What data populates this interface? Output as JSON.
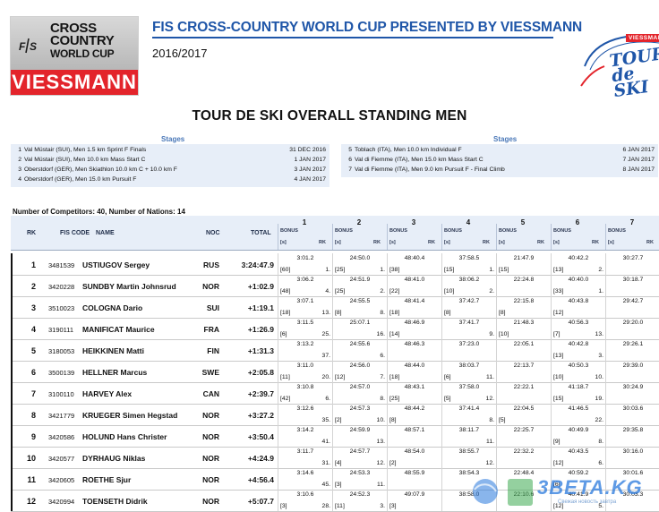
{
  "logo": {
    "line1": "CROSS",
    "line2": "COUNTRY",
    "line3": "WORLD CUP",
    "sponsor": "VIESSMANN",
    "fis": "FIS"
  },
  "header": {
    "title": "FIS CROSS-COUNTRY WORLD CUP PRESENTED BY VIESSMANN",
    "season": "2016/2017",
    "tds_badge": "VIESSMANN",
    "tds_line1": "TOUR",
    "tds_line2": "de SKI"
  },
  "doc_title": "TOUR DE SKI OVERALL STANDING MEN",
  "stages": {
    "heading_left": "Stages",
    "heading_right": "Stages",
    "left": [
      {
        "num": "1",
        "desc": "Val Müstair (SUI), Men 1.5 km Sprint F Finals",
        "date": "31 DEC 2016"
      },
      {
        "num": "2",
        "desc": "Val Müstair (SUI), Men 10.0 km Mass Start C",
        "date": "1 JAN 2017"
      },
      {
        "num": "3",
        "desc": "Oberstdorf (GER), Men Skiathlon 10.0 km C + 10.0 km F",
        "date": "3 JAN 2017"
      },
      {
        "num": "4",
        "desc": "Oberstdorf (GER), Men 15.0 km Pursuit F",
        "date": "4 JAN 2017"
      }
    ],
    "right": [
      {
        "num": "5",
        "desc": "Toblach (ITA), Men 10.0 km Individual F",
        "date": "6 JAN 2017"
      },
      {
        "num": "6",
        "desc": "Val di Fiemme (ITA), Men 15.0 km Mass Start C",
        "date": "7 JAN 2017"
      },
      {
        "num": "7",
        "desc": "Val di Fiemme (ITA), Men 9.0 km Pursuit F - Final Climb",
        "date": "8 JAN 2017"
      }
    ]
  },
  "competitors_line": "Number of Competitors: 40, Number of Nations: 14",
  "table": {
    "headers": {
      "rk": "RK",
      "fis_code": "FIS CODE",
      "name": "NAME",
      "noc": "NOC",
      "total": "TOTAL",
      "bonus": "BONUS",
      "s": "[s]",
      "rk_sub": "RK"
    },
    "stage_numbers": [
      "1",
      "2",
      "3",
      "4",
      "5",
      "6",
      "7"
    ],
    "rows": [
      {
        "rk": "1",
        "fis": "3481539",
        "name": "USTIUGOV Sergey",
        "noc": "RUS",
        "total": "3:24:47.9",
        "stages": [
          {
            "t": "3:01.2",
            "b": "[60]",
            "r": "1."
          },
          {
            "t": "24:50.0",
            "b": "[25]",
            "r": "1."
          },
          {
            "t": "48:40.4",
            "b": "[38]",
            "r": ""
          },
          {
            "t": "37:58.5",
            "b": "[15]",
            "r": "1."
          },
          {
            "t": "21:47.9",
            "b": "[15]",
            "r": ""
          },
          {
            "t": "40:42.2",
            "b": "[13]",
            "r": "2."
          },
          {
            "t": "30:27.7",
            "b": "",
            "r": ""
          }
        ]
      },
      {
        "rk": "2",
        "fis": "3420228",
        "name": "SUNDBY Martin Johnsrud",
        "noc": "NOR",
        "total": "+1:02.9",
        "stages": [
          {
            "t": "3:06.2",
            "b": "[48]",
            "r": "4."
          },
          {
            "t": "24:51.9",
            "b": "[25]",
            "r": "2."
          },
          {
            "t": "48:41.0",
            "b": "[22]",
            "r": ""
          },
          {
            "t": "38:06.2",
            "b": "[10]",
            "r": "2."
          },
          {
            "t": "22:24.8",
            "b": "",
            "r": ""
          },
          {
            "t": "40:40.0",
            "b": "[33]",
            "r": "1."
          },
          {
            "t": "30:18.7",
            "b": "",
            "r": ""
          }
        ]
      },
      {
        "rk": "3",
        "fis": "3510023",
        "name": "COLOGNA Dario",
        "noc": "SUI",
        "total": "+1:19.1",
        "stages": [
          {
            "t": "3:07.1",
            "b": "[18]",
            "r": "13."
          },
          {
            "t": "24:55.5",
            "b": "[8]",
            "r": "8."
          },
          {
            "t": "48:41.4",
            "b": "[18]",
            "r": ""
          },
          {
            "t": "37:42.7",
            "b": "[8]",
            "r": ""
          },
          {
            "t": "22:15.8",
            "b": "[8]",
            "r": ""
          },
          {
            "t": "40:43.8",
            "b": "[12]",
            "r": ""
          },
          {
            "t": "29:42.7",
            "b": "",
            "r": ""
          }
        ]
      },
      {
        "rk": "4",
        "fis": "3190111",
        "name": "MANIFICAT Maurice",
        "noc": "FRA",
        "total": "+1:26.9",
        "stages": [
          {
            "t": "3:11.5",
            "b": "[6]",
            "r": "25."
          },
          {
            "t": "25:07.1",
            "b": "",
            "r": "16."
          },
          {
            "t": "48:46.9",
            "b": "[14]",
            "r": ""
          },
          {
            "t": "37:41.7",
            "b": "",
            "r": "9."
          },
          {
            "t": "21:48.3",
            "b": "[10]",
            "r": ""
          },
          {
            "t": "40:56.3",
            "b": "[7]",
            "r": "13."
          },
          {
            "t": "29:20.0",
            "b": "",
            "r": ""
          }
        ]
      },
      {
        "rk": "5",
        "fis": "3180053",
        "name": "HEIKKINEN Matti",
        "noc": "FIN",
        "total": "+1:31.3",
        "stages": [
          {
            "t": "3:13.2",
            "b": "",
            "r": "37."
          },
          {
            "t": "24:55.6",
            "b": "",
            "r": "6."
          },
          {
            "t": "48:46.3",
            "b": "",
            "r": ""
          },
          {
            "t": "37:23.0",
            "b": "",
            "r": ""
          },
          {
            "t": "22:05.1",
            "b": "",
            "r": ""
          },
          {
            "t": "40:42.8",
            "b": "[13]",
            "r": "3."
          },
          {
            "t": "29:26.1",
            "b": "",
            "r": ""
          }
        ]
      },
      {
        "rk": "6",
        "fis": "3500139",
        "name": "HELLNER Marcus",
        "noc": "SWE",
        "total": "+2:05.8",
        "stages": [
          {
            "t": "3:11.0",
            "b": "[11]",
            "r": "20."
          },
          {
            "t": "24:56.0",
            "b": "[12]",
            "r": "7."
          },
          {
            "t": "48:44.0",
            "b": "[18]",
            "r": ""
          },
          {
            "t": "38:03.7",
            "b": "[6]",
            "r": "11."
          },
          {
            "t": "22:13.7",
            "b": "",
            "r": ""
          },
          {
            "t": "40:50.3",
            "b": "[10]",
            "r": "10."
          },
          {
            "t": "29:39.0",
            "b": "",
            "r": ""
          }
        ]
      },
      {
        "rk": "7",
        "fis": "3100110",
        "name": "HARVEY Alex",
        "noc": "CAN",
        "total": "+2:39.7",
        "stages": [
          {
            "t": "3:10.8",
            "b": "[42]",
            "r": "6."
          },
          {
            "t": "24:57.0",
            "b": "",
            "r": "8."
          },
          {
            "t": "48:43.1",
            "b": "[25]",
            "r": ""
          },
          {
            "t": "37:58.0",
            "b": "[5]",
            "r": "12."
          },
          {
            "t": "22:22.1",
            "b": "",
            "r": ""
          },
          {
            "t": "41:18.7",
            "b": "[15]",
            "r": "19."
          },
          {
            "t": "30:24.9",
            "b": "",
            "r": ""
          }
        ]
      },
      {
        "rk": "8",
        "fis": "3421779",
        "name": "KRUEGER Simen Hegstad",
        "noc": "NOR",
        "total": "+3:27.2",
        "stages": [
          {
            "t": "3:12.6",
            "b": "",
            "r": "35."
          },
          {
            "t": "24:57.3",
            "b": "[2]",
            "r": "10."
          },
          {
            "t": "48:44.2",
            "b": "[8]",
            "r": ""
          },
          {
            "t": "37:41.4",
            "b": "",
            "r": "8."
          },
          {
            "t": "22:04.5",
            "b": "[5]",
            "r": ""
          },
          {
            "t": "41:46.5",
            "b": "",
            "r": "22."
          },
          {
            "t": "30:03.6",
            "b": "",
            "r": ""
          }
        ]
      },
      {
        "rk": "9",
        "fis": "3420586",
        "name": "HOLUND Hans Christer",
        "noc": "NOR",
        "total": "+3:50.4",
        "stages": [
          {
            "t": "3:14.2",
            "b": "",
            "r": "41."
          },
          {
            "t": "24:59.9",
            "b": "",
            "r": "13."
          },
          {
            "t": "48:57.1",
            "b": "",
            "r": ""
          },
          {
            "t": "38:11.7",
            "b": "",
            "r": "11."
          },
          {
            "t": "22:25.7",
            "b": "",
            "r": ""
          },
          {
            "t": "40:49.9",
            "b": "[9]",
            "r": "8."
          },
          {
            "t": "29:35.8",
            "b": "",
            "r": ""
          }
        ]
      },
      {
        "rk": "10",
        "fis": "3420577",
        "name": "DYRHAUG Niklas",
        "noc": "NOR",
        "total": "+4:24.9",
        "stages": [
          {
            "t": "3:11.7",
            "b": "",
            "r": "31."
          },
          {
            "t": "24:57.7",
            "b": "[4]",
            "r": "12."
          },
          {
            "t": "48:54.0",
            "b": "[2]",
            "r": ""
          },
          {
            "t": "38:55.7",
            "b": "",
            "r": "12."
          },
          {
            "t": "22:32.2",
            "b": "",
            "r": ""
          },
          {
            "t": "40:43.5",
            "b": "[12]",
            "r": "6."
          },
          {
            "t": "30:16.0",
            "b": "",
            "r": ""
          }
        ]
      },
      {
        "rk": "11",
        "fis": "3420605",
        "name": "ROETHE Sjur",
        "noc": "NOR",
        "total": "+4:56.4",
        "stages": [
          {
            "t": "3:14.6",
            "b": "",
            "r": "45."
          },
          {
            "t": "24:53.3",
            "b": "[3]",
            "r": "11."
          },
          {
            "t": "48:55.9",
            "b": "",
            "r": ""
          },
          {
            "t": "38:54.3",
            "b": "",
            "r": ""
          },
          {
            "t": "22:48.4",
            "b": "",
            "r": ""
          },
          {
            "t": "40:59.2",
            "b": "[6]",
            "r": ""
          },
          {
            "t": "30:01.6",
            "b": "",
            "r": ""
          }
        ]
      },
      {
        "rk": "12",
        "fis": "3420994",
        "name": "TOENSETH Didrik",
        "noc": "NOR",
        "total": "+5:07.7",
        "stages": [
          {
            "t": "3:10.6",
            "b": "[3]",
            "r": "28."
          },
          {
            "t": "24:52.3",
            "b": "[11]",
            "r": "3."
          },
          {
            "t": "49:07.9",
            "b": "[3]",
            "r": ""
          },
          {
            "t": "38:58.0",
            "b": "",
            "r": ""
          },
          {
            "t": "22:10.6",
            "b": "",
            "r": ""
          },
          {
            "t": "40:41.9",
            "b": "[12]",
            "r": "5."
          },
          {
            "t": "30:03.3",
            "b": "",
            "r": ""
          }
        ]
      }
    ]
  },
  "watermark": {
    "text": "3BETA.KG",
    "sub": "Свежая новость завтра"
  }
}
